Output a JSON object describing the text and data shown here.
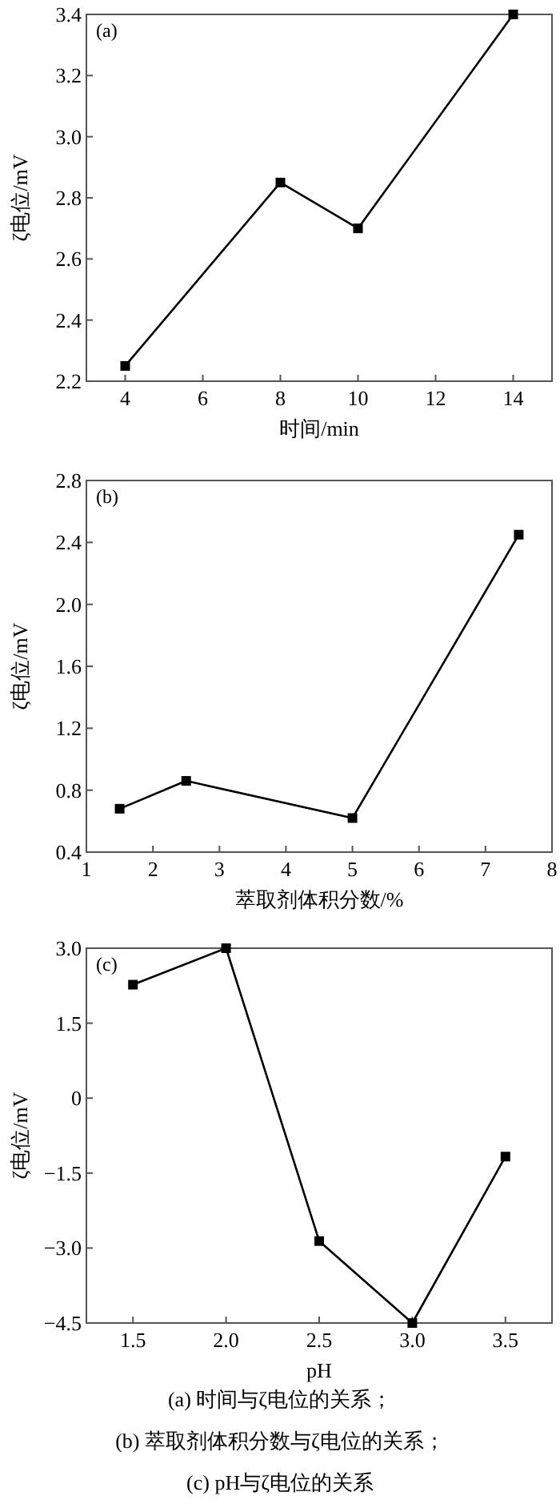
{
  "chart_data": [
    {
      "type": "line",
      "title": "(a)",
      "xlabel": "时间/min",
      "ylabel": "ζ电位/mV",
      "x": [
        4,
        8,
        10,
        14
      ],
      "marker": "square",
      "line_style": "solid",
      "grid": false,
      "series": [
        {
          "color": "#000000",
          "values": [
            2.25,
            2.85,
            2.7,
            3.4
          ]
        }
      ],
      "xlim": [
        3,
        15
      ],
      "xticks": [
        4,
        6,
        8,
        10,
        12,
        14
      ],
      "ylim": [
        2.2,
        3.4
      ],
      "yticks": [
        2.2,
        2.4,
        2.6,
        2.8,
        {
          "value": 3,
          "label": "3.0"
        },
        3.2,
        3.4
      ]
    },
    {
      "type": "line",
      "title": "(b)",
      "xlabel": "萃取剂体积分数/%",
      "ylabel": "ζ电位/mV",
      "x": [
        1.5,
        2.5,
        5,
        7.5
      ],
      "marker": "square",
      "line_style": "solid",
      "grid": false,
      "series": [
        {
          "color": "#000000",
          "values": [
            0.68,
            0.86,
            0.62,
            2.45
          ]
        }
      ],
      "xlim": [
        1,
        8
      ],
      "xticks": [
        1,
        2,
        3,
        4,
        5,
        6,
        7,
        8
      ],
      "ylim": [
        0.4,
        2.8
      ],
      "yticks": [
        0.4,
        0.8,
        1.2,
        1.6,
        {
          "value": 2,
          "label": "2.0"
        },
        2.4,
        2.8
      ]
    },
    {
      "type": "line",
      "title": "(c)",
      "xlabel": "pH",
      "ylabel": "ζ电位/mV",
      "x": [
        1.5,
        2,
        2.5,
        3,
        3.5
      ],
      "marker": "square",
      "line_style": "solid",
      "grid": false,
      "series": [
        {
          "color": "#000000",
          "values": [
            2.27,
            3.0,
            -2.86,
            -4.5,
            -1.17
          ]
        }
      ],
      "xlim": [
        1.25,
        3.75
      ],
      "xticks": [
        1.5,
        {
          "value": 2,
          "label": "2.0"
        },
        2.5,
        {
          "value": 3,
          "label": "3.0"
        },
        3.5
      ],
      "ylim": [
        -4.5,
        3
      ],
      "yticks": [
        {
          "value": -4.5,
          "label": "−4.5"
        },
        {
          "value": -3,
          "label": "−3.0"
        },
        {
          "value": -1.5,
          "label": "−1.5"
        },
        0,
        1.5,
        {
          "value": 3,
          "label": "3.0"
        }
      ],
      "annotations": [
        "(a) 时间与ζ电位的关系；",
        "(b) 萃取剂体积分数与ζ电位的关系；",
        "(c) pH与ζ电位的关系"
      ]
    }
  ]
}
